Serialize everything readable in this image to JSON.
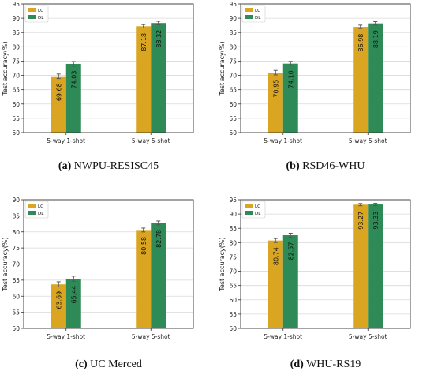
{
  "chart_data": [
    {
      "type": "bar",
      "caption_letter": "(a)",
      "caption_text": "NWPU-RESISC45",
      "ylabel": "Test accuracy(%)",
      "ylim": [
        50,
        95
      ],
      "yticks": [
        50,
        55,
        60,
        65,
        70,
        75,
        80,
        85,
        90,
        95
      ],
      "categories": [
        "5-way 1-shot",
        "5-way 5-shot"
      ],
      "grid": true,
      "legend_position": "top-left",
      "series": [
        {
          "name": "LC",
          "color": "#DAA520",
          "values": [
            69.68,
            87.18
          ],
          "errors": [
            0.8,
            0.6
          ],
          "labels": [
            "69.68",
            "87.18"
          ]
        },
        {
          "name": "DL",
          "color": "#2E8B57",
          "values": [
            74.03,
            88.32
          ],
          "errors": [
            0.8,
            0.6
          ],
          "labels": [
            "74.03",
            "88.32"
          ]
        }
      ]
    },
    {
      "type": "bar",
      "caption_letter": "(b)",
      "caption_text": "RSD46-WHU",
      "ylabel": "Test accuracy(%)",
      "ylim": [
        50,
        95
      ],
      "yticks": [
        50,
        55,
        60,
        65,
        70,
        75,
        80,
        85,
        90,
        95
      ],
      "categories": [
        "5-way 1-shot",
        "5-way 5-shot"
      ],
      "grid": true,
      "legend_position": "top-left",
      "series": [
        {
          "name": "LC",
          "color": "#DAA520",
          "values": [
            70.95,
            86.98
          ],
          "errors": [
            0.8,
            0.6
          ],
          "labels": [
            "70.95",
            "86.98"
          ]
        },
        {
          "name": "DL",
          "color": "#2E8B57",
          "values": [
            74.1,
            88.19
          ],
          "errors": [
            0.8,
            0.6
          ],
          "labels": [
            "74.10",
            "88.19"
          ]
        }
      ]
    },
    {
      "type": "bar",
      "caption_letter": "(c)",
      "caption_text": "UC Merced",
      "ylabel": "Test accuracy(%)",
      "ylim": [
        50,
        90
      ],
      "yticks": [
        50,
        55,
        60,
        65,
        70,
        75,
        80,
        85,
        90
      ],
      "categories": [
        "5-way 1-shot",
        "5-way 5-shot"
      ],
      "grid": true,
      "legend_position": "top-left",
      "series": [
        {
          "name": "LC",
          "color": "#DAA520",
          "values": [
            63.69,
            80.58
          ],
          "errors": [
            0.8,
            0.6
          ],
          "labels": [
            "63.69",
            "80.58"
          ]
        },
        {
          "name": "DL",
          "color": "#2E8B57",
          "values": [
            65.44,
            82.78
          ],
          "errors": [
            0.8,
            0.6
          ],
          "labels": [
            "65.44",
            "82.78"
          ]
        }
      ]
    },
    {
      "type": "bar",
      "caption_letter": "(d)",
      "caption_text": "WHU-RS19",
      "ylabel": "Test accuracy(%)",
      "ylim": [
        50,
        95
      ],
      "yticks": [
        50,
        55,
        60,
        65,
        70,
        75,
        80,
        85,
        90,
        95
      ],
      "categories": [
        "5-way 1-shot",
        "5-way 5-shot"
      ],
      "grid": true,
      "legend_position": "top-left",
      "series": [
        {
          "name": "LC",
          "color": "#DAA520",
          "values": [
            80.74,
            93.27
          ],
          "errors": [
            0.7,
            0.4
          ],
          "labels": [
            "80.74",
            "93.27"
          ]
        },
        {
          "name": "DL",
          "color": "#2E8B57",
          "values": [
            82.57,
            93.33
          ],
          "errors": [
            0.7,
            0.4
          ],
          "labels": [
            "82.57",
            "93.33"
          ]
        }
      ]
    }
  ]
}
